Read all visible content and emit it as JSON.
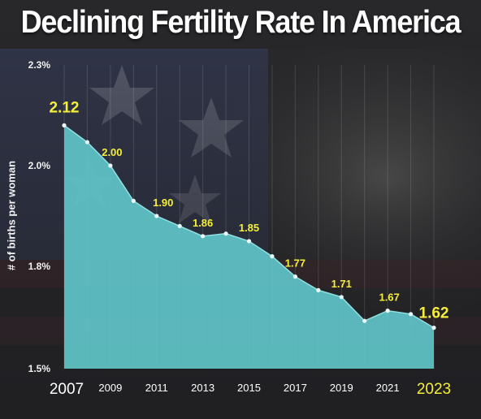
{
  "title": "Declining Fertility Rate In America",
  "chart_data": {
    "type": "area",
    "title": "Declining Fertility Rate In America",
    "ylabel": "# of births per woman",
    "xlabel": "",
    "ylim": [
      1.5,
      2.3
    ],
    "y_ticks": [
      "2.3%",
      "2.0%",
      "1.8%",
      "1.5%"
    ],
    "x_ticks": [
      "2007",
      "2009",
      "2011",
      "2013",
      "2015",
      "2017",
      "2019",
      "2021",
      "2023"
    ],
    "x": [
      2007,
      2008,
      2009,
      2010,
      2011,
      2012,
      2013,
      2014,
      2015,
      2016,
      2017,
      2018,
      2019,
      2020,
      2021,
      2022,
      2023
    ],
    "values": [
      2.12,
      2.07,
      2.0,
      1.93,
      1.9,
      1.88,
      1.86,
      1.865,
      1.85,
      1.82,
      1.77,
      1.73,
      1.71,
      1.64,
      1.67,
      1.66,
      1.62
    ],
    "data_labels": [
      {
        "year": 2007,
        "text": "2.12"
      },
      {
        "year": 2009,
        "text": "2.00"
      },
      {
        "year": 2011,
        "text": "1.90"
      },
      {
        "year": 2013,
        "text": "1.86"
      },
      {
        "year": 2015,
        "text": "1.85"
      },
      {
        "year": 2017,
        "text": "1.77"
      },
      {
        "year": 2019,
        "text": "1.71"
      },
      {
        "year": 2021,
        "text": "1.67"
      },
      {
        "year": 2023,
        "text": "1.62"
      }
    ],
    "grid": true,
    "colors": {
      "area": "#5fc4c8",
      "line": "#8fe0e3",
      "label": "#f5ef3a",
      "tick": "#ffffff"
    }
  }
}
